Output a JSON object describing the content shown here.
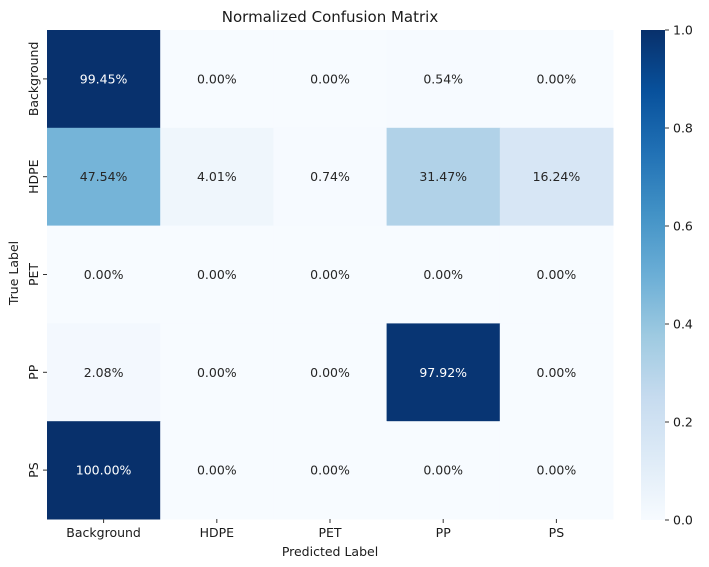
{
  "chart_data": {
    "type": "heatmap",
    "title": "Normalized Confusion Matrix",
    "xlabel": "Predicted Label",
    "ylabel": "True Label",
    "x_categories": [
      "Background",
      "HDPE",
      "PET",
      "PP",
      "PS"
    ],
    "y_categories": [
      "Background",
      "HDPE",
      "PET",
      "PP",
      "PS"
    ],
    "values": [
      [
        0.9945,
        0.0,
        0.0,
        0.0054,
        0.0
      ],
      [
        0.4754,
        0.0401,
        0.0074,
        0.3147,
        0.1624
      ],
      [
        0.0,
        0.0,
        0.0,
        0.0,
        0.0
      ],
      [
        0.0208,
        0.0,
        0.0,
        0.9792,
        0.0
      ],
      [
        1.0,
        0.0,
        0.0,
        0.0,
        0.0
      ]
    ],
    "cell_labels": [
      [
        "99.45%",
        "0.00%",
        "0.00%",
        "0.54%",
        "0.00%"
      ],
      [
        "47.54%",
        "4.01%",
        "0.74%",
        "31.47%",
        "16.24%"
      ],
      [
        "0.00%",
        "0.00%",
        "0.00%",
        "0.00%",
        "0.00%"
      ],
      [
        "2.08%",
        "0.00%",
        "0.00%",
        "97.92%",
        "0.00%"
      ],
      [
        "100.00%",
        "0.00%",
        "0.00%",
        "0.00%",
        "0.00%"
      ]
    ],
    "colormap": "Blues",
    "vmin": 0.0,
    "vmax": 1.0,
    "colorbar_ticks": [
      "0.0",
      "0.2",
      "0.4",
      "0.6",
      "0.8",
      "1.0"
    ],
    "grid": false
  }
}
